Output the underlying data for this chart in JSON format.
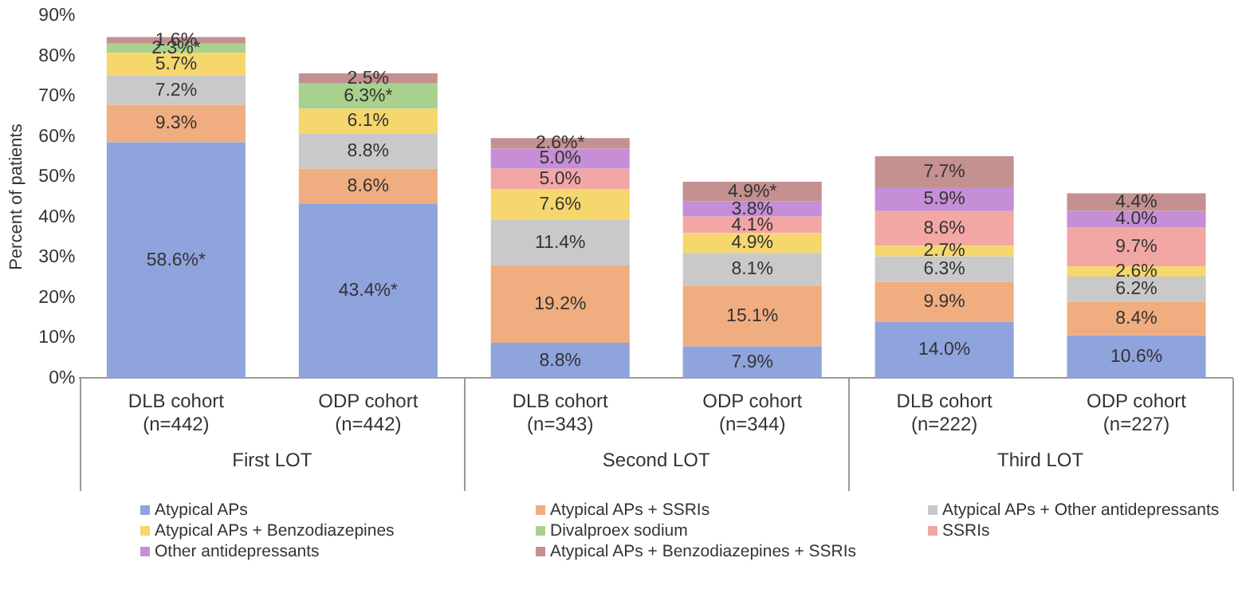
{
  "chart_data": {
    "type": "bar",
    "stacked": true,
    "ylabel": "Percent of patients",
    "categories": [
      "DLB cohort\n(n=442)",
      "ODP cohort\n(n=442)",
      "DLB cohort\n(n=343)",
      "ODP cohort\n(n=344)",
      "DLB cohort\n(n=222)",
      "ODP cohort\n(n=227)"
    ],
    "annotations": [
      "First LOT",
      "Second LOT",
      "Third LOT"
    ],
    "ylim": [
      0,
      90
    ],
    "yticks": [
      {
        "value": 0,
        "label": "0%"
      },
      {
        "value": 10,
        "label": "10%"
      },
      {
        "value": 20,
        "label": "20%"
      },
      {
        "value": 30,
        "label": "30%"
      },
      {
        "value": 40,
        "label": "40%"
      },
      {
        "value": 50,
        "label": "50%"
      },
      {
        "value": 60,
        "label": "60%"
      },
      {
        "value": 70,
        "label": "70%"
      },
      {
        "value": 80,
        "label": "80%"
      },
      {
        "value": 90,
        "label": "90%"
      }
    ],
    "grid": false,
    "legend": "bottom",
    "series": [
      {
        "name": "Atypical APs",
        "color": "#8fa3dd",
        "values": [
          58.6,
          43.4,
          8.8,
          7.9,
          14.0,
          10.6
        ],
        "value_labels": [
          "58.6%*",
          "43.4%*",
          "8.8%",
          "7.9%",
          "14.0%",
          "10.6%"
        ]
      },
      {
        "name": "Atypical APs + SSRIs",
        "color": "#f0ad7f",
        "values": [
          9.3,
          8.6,
          19.2,
          15.1,
          9.9,
          8.4
        ],
        "value_labels": [
          "9.3%",
          "8.6%",
          "19.2%",
          "15.1%",
          "9.9%",
          "8.4%"
        ]
      },
      {
        "name": "Atypical APs + Other antidepressants",
        "color": "#c9c9c9",
        "values": [
          7.2,
          8.8,
          11.4,
          8.1,
          6.3,
          6.2
        ],
        "value_labels": [
          "7.2%",
          "8.8%",
          "11.4%",
          "8.1%",
          "6.3%",
          "6.2%"
        ]
      },
      {
        "name": "Atypical APs + Benzodiazepines",
        "color": "#f5d76e",
        "values": [
          5.7,
          6.1,
          7.6,
          4.9,
          2.7,
          2.6
        ],
        "value_labels": [
          "5.7%",
          "6.1%",
          "7.6%",
          "4.9%",
          "2.7%",
          "2.6%"
        ]
      },
      {
        "name": "Divalproex sodium",
        "color": "#a9d18e",
        "values": [
          2.3,
          6.3,
          null,
          null,
          null,
          null
        ],
        "value_labels": [
          "2.3%*",
          "6.3%*",
          null,
          null,
          null,
          null
        ]
      },
      {
        "name": "SSRIs",
        "color": "#f2a7a5",
        "values": [
          null,
          null,
          5.0,
          4.1,
          8.6,
          9.7
        ],
        "value_labels": [
          null,
          null,
          "5.0%",
          "4.1%",
          "8.6%",
          "9.7%"
        ]
      },
      {
        "name": "Other antidepressants",
        "color": "#c58ed6",
        "values": [
          null,
          null,
          5.0,
          3.8,
          5.9,
          4.0
        ],
        "value_labels": [
          null,
          null,
          "5.0%",
          "3.8%",
          "5.9%",
          "4.0%"
        ]
      },
      {
        "name": "Atypical APs + Benzodiazepines + SSRIs",
        "color": "#c49090",
        "values": [
          1.6,
          2.5,
          2.6,
          4.9,
          7.7,
          4.4
        ],
        "value_labels": [
          "1.6%",
          "2.5%",
          "2.6%*",
          "4.9%*",
          "7.7%",
          "4.4%"
        ]
      }
    ]
  }
}
